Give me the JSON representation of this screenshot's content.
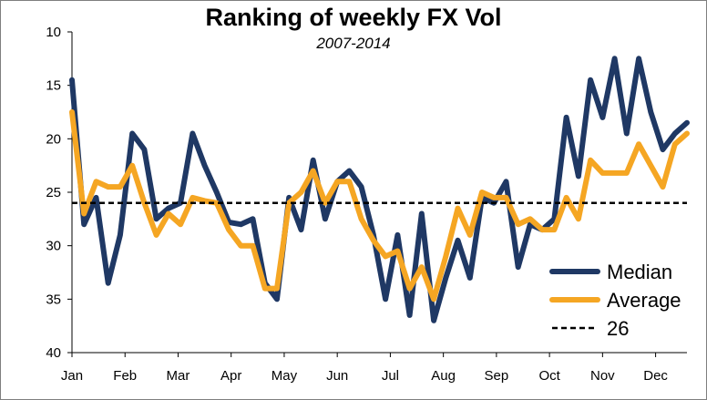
{
  "chart_data": {
    "type": "line",
    "title": "Ranking of weekly FX Vol",
    "subtitle": "2007-2014",
    "xlabel": "",
    "ylabel": "",
    "ylim": [
      10,
      40
    ],
    "y_inverted": true,
    "y_ticks": [
      "10",
      "15",
      "20",
      "25",
      "30",
      "35",
      "40"
    ],
    "x_ticks": [
      "Jan",
      "Feb",
      "Mar",
      "Apr",
      "May",
      "Jun",
      "Jul",
      "Aug",
      "Sep",
      "Oct",
      "Nov",
      "Dec"
    ],
    "grid": false,
    "legend_position": "bottom-right",
    "weeks_per_month": 4.4,
    "series": [
      {
        "name": "Median",
        "color": "#1f3864",
        "values": [
          14.5,
          28,
          25.5,
          33.5,
          29,
          19.5,
          21,
          27.5,
          26.5,
          26,
          19.5,
          22.5,
          25,
          27.8,
          28,
          27.5,
          33.5,
          35,
          25.5,
          28.5,
          22,
          27.5,
          24,
          23,
          24.5,
          29,
          35,
          29,
          36.5,
          27,
          37,
          33,
          29.5,
          33,
          25.5,
          26,
          24,
          32,
          28,
          28.5,
          27.5,
          18,
          23.5,
          14.5,
          18,
          12.5,
          19.5,
          12.5,
          17.5,
          21,
          19.5,
          18.5
        ]
      },
      {
        "name": "Average",
        "color": "#f5a623",
        "values": [
          17.5,
          27,
          24,
          24.5,
          24.5,
          22.5,
          26,
          29,
          27,
          28,
          25.5,
          25.8,
          26,
          28.5,
          30,
          30,
          34,
          34,
          26,
          25,
          23,
          26,
          24,
          24,
          27.5,
          29.5,
          31,
          30.5,
          34,
          32,
          35,
          31,
          26.5,
          29,
          25,
          25.5,
          25.5,
          28,
          27.5,
          28.5,
          28.5,
          25.5,
          27.5,
          22,
          23.2,
          23.2,
          23.2,
          20.5,
          22.5,
          24.5,
          20.5,
          19.5
        ]
      },
      {
        "name": "26",
        "color": "#000000",
        "style": "dashed",
        "values": [
          26,
          26
        ]
      }
    ]
  }
}
